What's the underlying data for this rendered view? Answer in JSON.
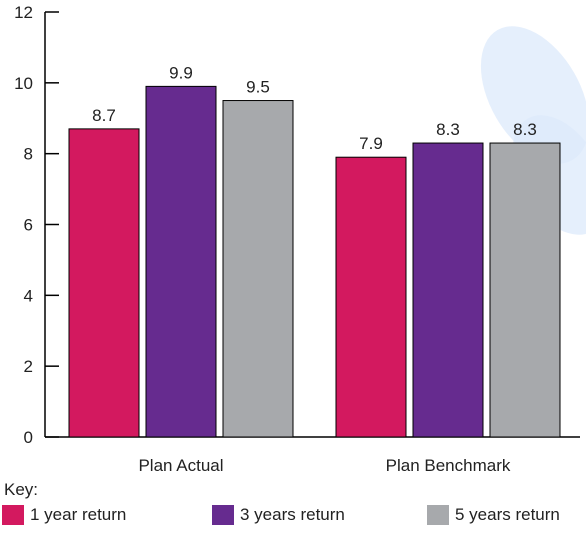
{
  "chart_data": {
    "type": "bar",
    "title": "",
    "xlabel": "",
    "ylabel": "",
    "categories": [
      "Plan Actual",
      "Plan Benchmark"
    ],
    "series": [
      {
        "name": "1 year return",
        "color": "#d3195f",
        "values": [
          8.7,
          7.9
        ],
        "labels": [
          "8.7",
          "7.9"
        ]
      },
      {
        "name": "3 years return",
        "color": "#662b8f",
        "values": [
          9.9,
          8.3
        ],
        "labels": [
          "9.9",
          "8.3"
        ]
      },
      {
        "name": "5 years return",
        "color": "#a7a9ac",
        "values": [
          9.5,
          8.3
        ],
        "labels": [
          "9.5",
          "8.3"
        ]
      }
    ],
    "ylim": [
      0,
      12
    ],
    "yticks": [
      "0",
      "2",
      "4",
      "6",
      "8",
      "10",
      "12"
    ],
    "grid": false,
    "legend_title": "Key:",
    "legend_position": "bottom"
  }
}
